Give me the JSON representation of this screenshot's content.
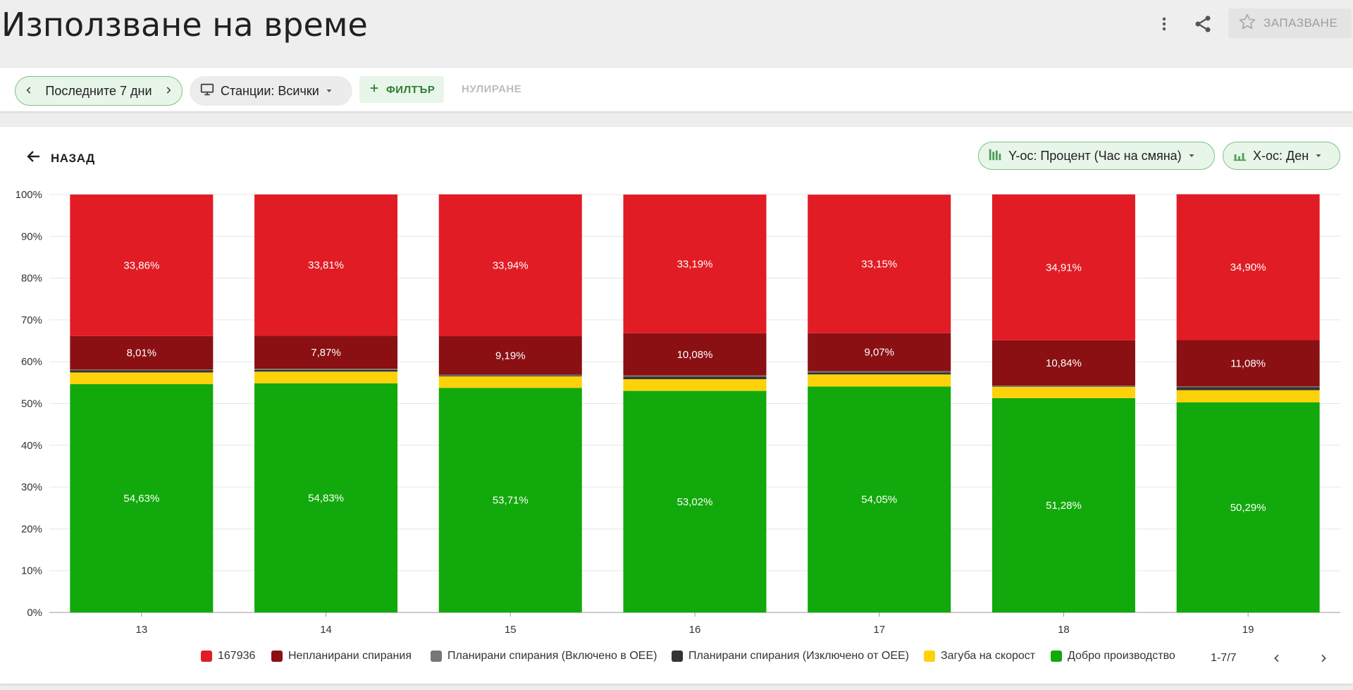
{
  "header": {
    "title": "Използване на време",
    "save_label": "ЗАПАЗВАНЕ",
    "more_icon": "more-vertical-icon",
    "share_icon": "share-icon",
    "star_icon": "star-outline-icon"
  },
  "filters": {
    "date_range": "Последните 7 дни",
    "stations": "Станции: Всички",
    "filter_label": "ФИЛТЪР",
    "reset_label": "НУЛИРАНЕ"
  },
  "card": {
    "back_label": "НАЗАД",
    "y_axis_chip": "Y-ос: Процент (Час на смяна)",
    "x_axis_chip": "X-ос: Ден"
  },
  "chart_data": {
    "type": "bar",
    "stacked": true,
    "categories": [
      "13",
      "14",
      "15",
      "16",
      "17",
      "18",
      "19"
    ],
    "ylim": [
      0,
      100
    ],
    "yticks": [
      "0%",
      "10%",
      "20%",
      "30%",
      "40%",
      "50%",
      "60%",
      "70%",
      "80%",
      "90%",
      "100%"
    ],
    "series": [
      {
        "name": "Добро производство",
        "color": "#11a90b",
        "values": [
          54.63,
          54.83,
          53.71,
          53.02,
          54.05,
          51.28,
          50.29
        ],
        "labels": [
          "54,63%",
          "54,83%",
          "53,71%",
          "53,02%",
          "54,05%",
          "51,28%",
          "50,29%"
        ]
      },
      {
        "name": "Загуба на скорост",
        "color": "#fdd20a",
        "values": [
          2.8,
          2.8,
          2.8,
          2.8,
          2.9,
          2.7,
          2.9
        ],
        "labels": [
          "",
          "",
          "",
          "",
          "",
          "",
          ""
        ]
      },
      {
        "name": "Планирани спирания (Изключено от OEE)",
        "color": "#333333",
        "values": [
          0.5,
          0.4,
          0.2,
          0.6,
          0.5,
          0.1,
          0.7
        ],
        "labels": [
          "",
          "",
          "",
          "",
          "",
          "",
          ""
        ]
      },
      {
        "name": "Планирани спирания (Включено в OEE)",
        "color": "#777777",
        "values": [
          0.2,
          0.3,
          0.2,
          0.3,
          0.3,
          0.2,
          0.2
        ],
        "labels": [
          "",
          "",
          "",
          "",
          "",
          "",
          ""
        ]
      },
      {
        "name": "Непланирани спирания",
        "color": "#8a1014",
        "values": [
          8.01,
          7.87,
          9.19,
          10.08,
          9.07,
          10.84,
          11.08
        ],
        "labels": [
          "8,01%",
          "7,87%",
          "9,19%",
          "10,08%",
          "9,07%",
          "10,84%",
          "11,08%"
        ]
      },
      {
        "name": "167936",
        "color": "#e11c25",
        "values": [
          33.86,
          33.81,
          33.94,
          33.19,
          33.15,
          34.91,
          34.9
        ],
        "labels": [
          "33,86%",
          "33,81%",
          "33,94%",
          "33,19%",
          "33,15%",
          "34,91%",
          "34,90%"
        ]
      }
    ]
  },
  "legend": {
    "items": [
      {
        "name": "167936",
        "color": "#e11c25"
      },
      {
        "name": "Непланирани спирания",
        "color": "#8a1014"
      },
      {
        "name": "Планирани спирания (Включено в OEE)",
        "color": "#777777"
      },
      {
        "name": "Планирани спирания (Изключено от OEE)",
        "color": "#333333"
      },
      {
        "name": "Загуба на скорост",
        "color": "#fdd20a"
      },
      {
        "name": "Добро производство",
        "color": "#11a90b"
      }
    ],
    "pager": "1-7/7"
  }
}
